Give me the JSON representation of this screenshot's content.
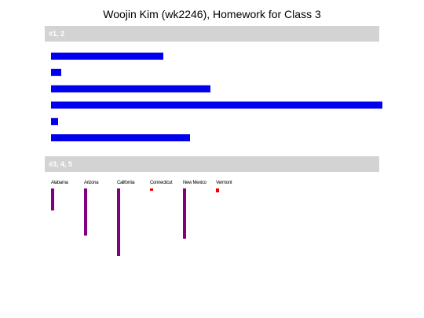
{
  "header": {
    "title": "Woojin Kim (wk2246), Homework for Class 3"
  },
  "sections": [
    {
      "title": "#1, 2",
      "color": "#0000ee",
      "values": [
        143,
        13,
        203,
        422,
        9,
        177
      ]
    },
    {
      "title": "#3, 4, 5",
      "items": [
        {
          "label": "Alabama",
          "value": 28,
          "color": "#800080"
        },
        {
          "label": "Arizona",
          "value": 60,
          "color": "#800080"
        },
        {
          "label": "California",
          "value": 86,
          "color": "#800080"
        },
        {
          "label": "Connecticut",
          "value": 3,
          "color": "#ee0000"
        },
        {
          "label": "New Mexico",
          "value": 64,
          "color": "#800080"
        },
        {
          "label": "Vermont",
          "value": 5,
          "color": "#ee0000"
        }
      ]
    }
  ]
}
